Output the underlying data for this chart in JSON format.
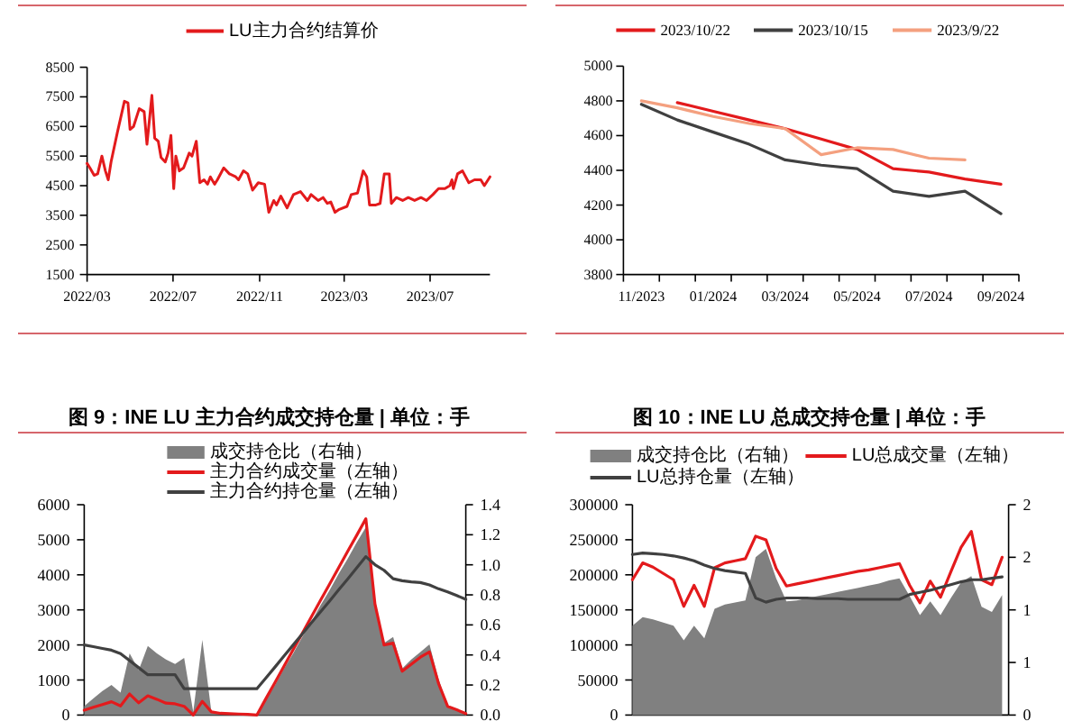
{
  "chart_data": [
    {
      "type": "line",
      "legend": "top",
      "xlim": [
        "2022-03-01",
        "2023-09-24"
      ],
      "xticks": [
        {
          "value": "2022-03-01",
          "label": "2022/03"
        },
        {
          "value": "2022-07-01",
          "label": "2022/07"
        },
        {
          "value": "2022-11-01",
          "label": "2022/11"
        },
        {
          "value": "2023-03-01",
          "label": "2023/03"
        },
        {
          "value": "2023-07-01",
          "label": "2023/07"
        }
      ],
      "ylim": [
        1500,
        8500
      ],
      "yticks": [
        1500,
        2500,
        3500,
        4500,
        5500,
        6500,
        7500,
        8500
      ],
      "series": [
        {
          "name": "LU主力合约结算价",
          "color": "#e31a1c",
          "x": [
            "2022-03-01",
            "2022-03-05",
            "2022-03-11",
            "2022-03-16",
            "2022-03-22",
            "2022-03-27",
            "2022-03-31",
            "2022-04-04",
            "2022-04-13",
            "2022-04-23",
            "2022-04-28",
            "2022-05-01",
            "2022-05-06",
            "2022-05-14",
            "2022-05-21",
            "2022-05-25",
            "2022-06-01",
            "2022-06-05",
            "2022-06-10",
            "2022-06-14",
            "2022-06-20",
            "2022-06-24",
            "2022-06-28",
            "2022-07-02",
            "2022-07-05",
            "2022-07-10",
            "2022-07-16",
            "2022-07-24",
            "2022-07-28",
            "2022-08-03",
            "2022-08-08",
            "2022-08-14",
            "2022-08-19",
            "2022-08-23",
            "2022-08-29",
            "2022-09-02",
            "2022-09-11",
            "2022-09-19",
            "2022-09-28",
            "2022-10-02",
            "2022-10-09",
            "2022-10-15",
            "2022-10-22",
            "2022-10-30",
            "2022-11-08",
            "2022-11-14",
            "2022-11-21",
            "2022-11-25",
            "2022-12-01",
            "2022-12-10",
            "2022-12-19",
            "2022-12-29",
            "2023-01-08",
            "2023-01-13",
            "2023-01-23",
            "2023-01-30",
            "2023-02-05",
            "2023-02-10",
            "2023-02-16",
            "2023-02-22",
            "2023-03-05",
            "2023-03-11",
            "2023-03-20",
            "2023-03-28",
            "2023-04-02",
            "2023-04-06",
            "2023-04-15",
            "2023-04-21",
            "2023-04-27",
            "2023-05-04",
            "2023-05-07",
            "2023-05-14",
            "2023-05-23",
            "2023-05-31",
            "2023-06-09",
            "2023-06-18",
            "2023-06-26",
            "2023-07-05",
            "2023-07-13",
            "2023-07-22",
            "2023-07-29",
            "2023-08-01",
            "2023-08-03",
            "2023-08-09",
            "2023-08-16",
            "2023-08-25",
            "2023-09-02",
            "2023-09-11",
            "2023-09-16",
            "2023-09-24"
          ],
          "values": [
            5250,
            5100,
            4850,
            4900,
            5500,
            5000,
            4700,
            5300,
            6300,
            7350,
            7300,
            6400,
            6500,
            7100,
            7000,
            5900,
            7550,
            6100,
            6000,
            5450,
            5300,
            5600,
            6200,
            4400,
            5500,
            5000,
            5100,
            5600,
            5500,
            6000,
            4600,
            4700,
            4550,
            4800,
            4550,
            4700,
            5100,
            4900,
            4800,
            4700,
            5000,
            4900,
            4350,
            4600,
            4550,
            3600,
            4000,
            3850,
            4150,
            3750,
            4200,
            4300,
            4000,
            4200,
            4000,
            4100,
            3900,
            3950,
            3600,
            3700,
            3800,
            4200,
            4250,
            5000,
            4800,
            3850,
            3850,
            3900,
            4900,
            4900,
            3900,
            4100,
            4000,
            4100,
            4000,
            4100,
            4000,
            4200,
            4400,
            4400,
            4500,
            4700,
            4400,
            4900,
            5000,
            4600,
            4700,
            4700,
            4500,
            4800
          ]
        }
      ]
    },
    {
      "type": "line",
      "legend": "top",
      "categories": [
        "11/2023",
        null,
        "01/2024",
        null,
        "03/2024",
        null,
        "05/2024",
        null,
        "07/2024",
        null,
        "09/2024"
      ],
      "ylim": [
        3800,
        5000
      ],
      "yticks": [
        3800,
        4000,
        4200,
        4400,
        4600,
        4800,
        5000
      ],
      "series": [
        {
          "name": "2023/10/22",
          "color": "#e31a1c",
          "values": [
            null,
            4790,
            4740,
            4690,
            4640,
            4580,
            4520,
            4410,
            4390,
            4350,
            4320
          ]
        },
        {
          "name": "2023/10/15",
          "color": "#404040",
          "values": [
            4780,
            4690,
            4620,
            4550,
            4460,
            4430,
            4410,
            4280,
            4250,
            4280,
            4150
          ]
        },
        {
          "name": "2023/9/22",
          "color": "#f4a07f",
          "values": [
            4800,
            4760,
            4710,
            4670,
            4640,
            4490,
            4530,
            4520,
            4470,
            4460,
            null
          ]
        }
      ]
    },
    {
      "type": "line",
      "title": "图 9：INE LU 主力合约成交持仓量 | 单位：手",
      "legend": "top",
      "categories": [
        null,
        null,
        null,
        null,
        null,
        null,
        null,
        null,
        null,
        null,
        null,
        null,
        null,
        null,
        null,
        null,
        null,
        null,
        null,
        null,
        null,
        null,
        null,
        null,
        null,
        null,
        null,
        null,
        null,
        null,
        null,
        null,
        null,
        null,
        null,
        null,
        null,
        null,
        null,
        null,
        null,
        null,
        null
      ],
      "ylim": [
        0,
        6000
      ],
      "yticks": [
        0,
        1000,
        2000,
        3000,
        4000,
        5000,
        6000
      ],
      "y2lim": [
        0,
        1.4
      ],
      "y2ticks": [
        {
          "value": 0,
          "label": "0.0"
        },
        0.2,
        0.4,
        0.6,
        0.8,
        {
          "value": 1,
          "label": "1.0"
        },
        1.2,
        1.4
      ],
      "series": [
        {
          "name": "成交持仓比（右轴）",
          "type": "area",
          "axis": "y2",
          "color": "#808080",
          "values": [
            0.06,
            0.11,
            0.16,
            0.2,
            0.15,
            0.41,
            0.3,
            0.46,
            0.41,
            0.37,
            0.34,
            0.38,
            0.02,
            0.5,
            0.02,
            0.01,
            0.01,
            0.01,
            0,
            0,
            0.1,
            0.2,
            0.31,
            0.41,
            0.52,
            0.62,
            0.73,
            0.83,
            0.94,
            1.04,
            1.15,
            1.25,
            0.74,
            0.48,
            0.52,
            0.31,
            0.37,
            0.42,
            0.47,
            0.24,
            0.06,
            0.04,
            0.01
          ]
        },
        {
          "name": "主力合约成交量（左轴）",
          "color": "#e31a1c",
          "values": [
            140,
            220,
            300,
            380,
            260,
            600,
            350,
            550,
            450,
            340,
            320,
            250,
            0,
            390,
            90,
            50,
            40,
            30,
            20,
            0,
            470,
            930,
            1400,
            1870,
            2330,
            2800,
            3270,
            3730,
            4200,
            4670,
            5130,
            5600,
            3170,
            2000,
            2050,
            1250,
            1450,
            1650,
            1800,
            900,
            250,
            150,
            40
          ]
        },
        {
          "name": "主力合约持仓量（左轴）",
          "color": "#404040",
          "values": [
            2000,
            1950,
            1900,
            1850,
            1750,
            1550,
            1350,
            1150,
            1150,
            1150,
            1150,
            750,
            750,
            750,
            750,
            750,
            750,
            750,
            750,
            750,
            1060,
            1370,
            1690,
            2000,
            2310,
            2630,
            2940,
            3250,
            3570,
            3880,
            4200,
            4520,
            4290,
            4130,
            3890,
            3830,
            3800,
            3780,
            3710,
            3600,
            3510,
            3410,
            3300
          ]
        }
      ]
    },
    {
      "type": "line",
      "title": "图 10：INE LU 总成交持仓量 | 单位：手",
      "legend": "top",
      "categories": [
        null,
        null,
        null,
        null,
        null,
        null,
        null,
        null,
        null,
        null,
        null,
        null,
        null,
        null,
        null,
        null,
        null,
        null,
        null,
        null,
        null,
        null,
        null,
        null,
        null,
        null,
        null,
        null,
        null,
        null,
        null,
        null,
        null,
        null,
        null,
        null,
        null
      ],
      "ylim": [
        0,
        300000
      ],
      "yticks": [
        0,
        50000,
        100000,
        150000,
        200000,
        250000,
        300000
      ],
      "y2lim": [
        0,
        2
      ],
      "y2ticks": [
        0,
        {
          "value": 0.5,
          "label": "1"
        },
        1,
        {
          "value": 1.5,
          "label": "2"
        },
        2
      ],
      "series": [
        {
          "name": "成交持仓比（右轴）",
          "type": "area",
          "axis": "y2",
          "color": "#808080",
          "values": [
            0.85,
            0.93,
            0.91,
            0.88,
            0.85,
            0.71,
            0.85,
            0.73,
            1.01,
            1.05,
            1.07,
            1.09,
            1.5,
            1.58,
            1.3,
            1.08,
            1.09,
            1.11,
            1.13,
            1.15,
            1.17,
            1.19,
            1.21,
            1.23,
            1.25,
            1.28,
            1.3,
            1.13,
            0.95,
            1.08,
            0.95,
            1.11,
            1.26,
            1.32,
            1.03,
            0.98,
            1.14
          ]
        },
        {
          "name": "LU总成交量（左轴）",
          "color": "#e31a1c",
          "values": [
            193000,
            217000,
            211000,
            202000,
            193000,
            155000,
            185000,
            155000,
            210000,
            217000,
            220000,
            223000,
            255000,
            250000,
            209000,
            184000,
            187000,
            190000,
            193000,
            196000,
            199000,
            202000,
            205000,
            207000,
            210000,
            213000,
            216000,
            185000,
            160000,
            191000,
            168000,
            204000,
            239000,
            262000,
            193000,
            186000,
            225000
          ]
        },
        {
          "name": "LU总持仓量（左轴）",
          "color": "#404040",
          "values": [
            229000,
            231000,
            230000,
            229000,
            227000,
            224000,
            220000,
            214000,
            209000,
            206000,
            204000,
            202000,
            167000,
            161000,
            165000,
            167000,
            167000,
            167000,
            166000,
            166000,
            166000,
            165000,
            165000,
            165000,
            165000,
            165000,
            165000,
            172000,
            175000,
            178000,
            182000,
            186000,
            190000,
            193000,
            193000,
            195000,
            197000
          ]
        }
      ]
    }
  ]
}
